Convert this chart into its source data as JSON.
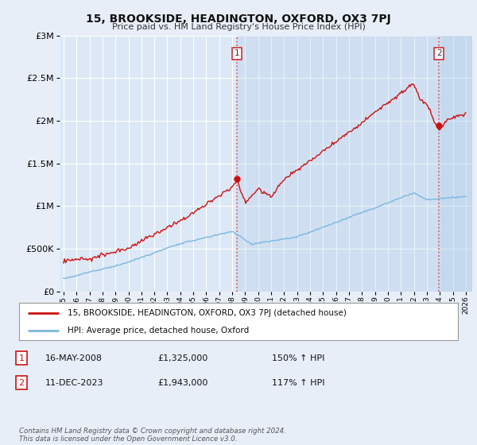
{
  "title": "15, BROOKSIDE, HEADINGTON, OXFORD, OX3 7PJ",
  "subtitle": "Price paid vs. HM Land Registry's House Price Index (HPI)",
  "ylim": [
    0,
    3000000
  ],
  "yticks": [
    0,
    500000,
    1000000,
    1500000,
    2000000,
    2500000,
    3000000
  ],
  "sale1_date": 2008.37,
  "sale1_price": 1325000,
  "sale2_date": 2023.94,
  "sale2_price": 1943000,
  "bg_color": "#e8eef8",
  "plot_bg_color": "#dce8f5",
  "plot_bg_shaded": "#c8d8ee",
  "grid_color": "#ffffff",
  "hpi_line_color": "#7ab8e0",
  "price_line_color": "#cc1111",
  "vline_color": "#dd4444",
  "legend_label1": "15, BROOKSIDE, HEADINGTON, OXFORD, OX3 7PJ (detached house)",
  "legend_label2": "HPI: Average price, detached house, Oxford",
  "note1_date": "16-MAY-2008",
  "note1_price": "£1,325,000",
  "note1_hpi": "150% ↑ HPI",
  "note2_date": "11-DEC-2023",
  "note2_price": "£1,943,000",
  "note2_hpi": "117% ↑ HPI",
  "footer": "Contains HM Land Registry data © Crown copyright and database right 2024.\nThis data is licensed under the Open Government Licence v3.0."
}
